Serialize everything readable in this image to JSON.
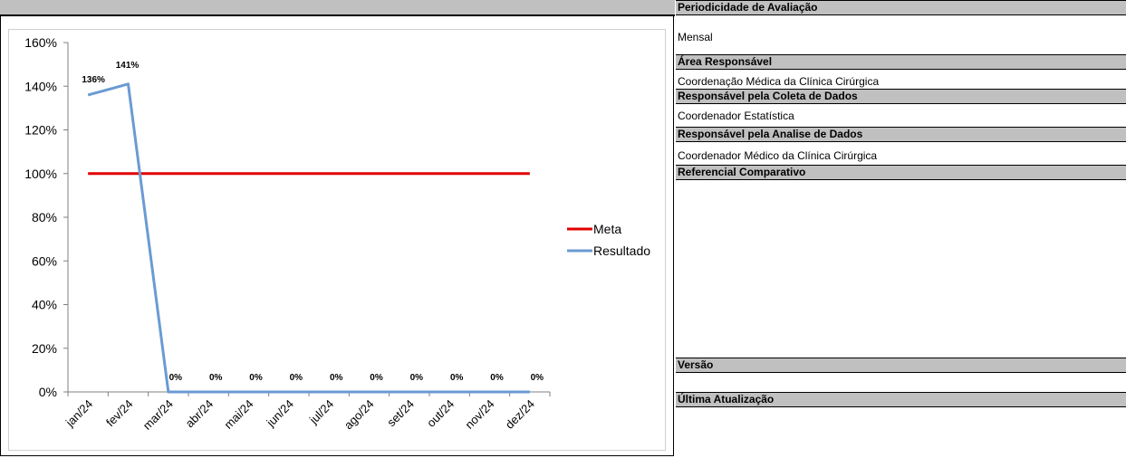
{
  "panel": {
    "periodicidade_label": "Periodicidade de Avaliação",
    "periodicidade_value": "Mensal",
    "area_label": "Área Responsável",
    "area_value": "Coordenação Médica da Clínica Cirúrgica",
    "coleta_label": "Responsável pela Coleta de Dados",
    "coleta_value": "Coordenador Estatística",
    "analise_label": "Responsável pela Analise de Dados",
    "analise_value": "Coordenador Médico da Clínica Cirúrgica",
    "referencial_label": "Referencial Comparativo",
    "referencial_value": "",
    "versao_label": "Versão",
    "versao_value": "",
    "atualizacao_label": "Última Atualização",
    "atualizacao_value": ""
  },
  "chart_data": {
    "type": "line",
    "title": "",
    "xlabel": "",
    "ylabel": "",
    "categories": [
      "jan/24",
      "fev/24",
      "mar/24",
      "abr/24",
      "mai/24",
      "jun/24",
      "jul/24",
      "ago/24",
      "set/24",
      "out/24",
      "nov/24",
      "dez/24"
    ],
    "y_ticks": [
      "0%",
      "20%",
      "40%",
      "60%",
      "80%",
      "100%",
      "120%",
      "140%",
      "160%"
    ],
    "ylim": [
      0,
      160
    ],
    "grid": false,
    "legend_position": "right",
    "series": [
      {
        "name": "Meta",
        "color": "#e00000",
        "values": [
          100,
          100,
          100,
          100,
          100,
          100,
          100,
          100,
          100,
          100,
          100,
          100
        ],
        "labels": []
      },
      {
        "name": "Resultado",
        "color": "#6a9bd2",
        "values": [
          136,
          141,
          0,
          0,
          0,
          0,
          0,
          0,
          0,
          0,
          0,
          0
        ],
        "labels": [
          "136%",
          "141%",
          "0%",
          "0%",
          "0%",
          "0%",
          "0%",
          "0%",
          "0%",
          "0%",
          "0%",
          "0%"
        ]
      }
    ]
  }
}
